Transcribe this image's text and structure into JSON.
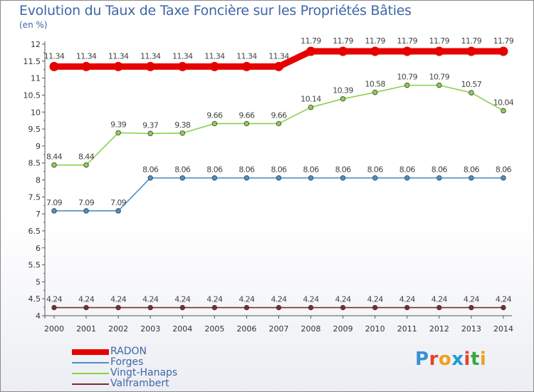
{
  "title": "Evolution du Taux de Taxe Foncière sur les Propriétés Bâties",
  "unit": "(en %)",
  "logo": "Proxiti",
  "colors": {
    "title": "#3f66a8",
    "axis": "#555555",
    "tick_text": "#333333",
    "label_text": "#444444",
    "minor_tick": "#e03030"
  },
  "chart_data": {
    "type": "line",
    "title": "Evolution du Taux de Taxe Foncière sur les Propriétés Bâties",
    "ylabel": "(en %)",
    "x": [
      "2000",
      "2001",
      "2002",
      "2003",
      "2004",
      "2005",
      "2006",
      "2007",
      "2008",
      "2009",
      "2010",
      "2011",
      "2012",
      "2013",
      "2014"
    ],
    "ylim": [
      4,
      12
    ],
    "yticks": [
      "4",
      "4.5",
      "5",
      "5.5",
      "6",
      "6.5",
      "7",
      "7.5",
      "8",
      "8.5",
      "9",
      "9.5",
      "10",
      "10.5",
      "11",
      "11.5",
      "12"
    ],
    "grid": false,
    "legend_position": "bottom-left",
    "series": [
      {
        "name": "RADON",
        "color": "#e60000",
        "values": [
          11.34,
          11.34,
          11.34,
          11.34,
          11.34,
          11.34,
          11.34,
          11.34,
          11.79,
          11.79,
          11.79,
          11.79,
          11.79,
          11.79,
          11.79
        ],
        "labels": [
          "11.34",
          "11.34",
          "11.34",
          "11.34",
          "11.34",
          "11.34",
          "11.34",
          "11.34",
          "11.79",
          "11.79",
          "11.79",
          "11.79",
          "11.79",
          "11.79",
          "11.79"
        ]
      },
      {
        "name": "Forges",
        "color": "#4a90c8",
        "values": [
          7.09,
          7.09,
          7.09,
          8.06,
          8.06,
          8.06,
          8.06,
          8.06,
          8.06,
          8.06,
          8.06,
          8.06,
          8.06,
          8.06,
          8.06
        ],
        "labels": [
          "7.09",
          "7.09",
          "7.09",
          "8.06",
          "8.06",
          "8.06",
          "8.06",
          "8.06",
          "8.06",
          "8.06",
          "8.06",
          "8.06",
          "8.06",
          "8.06",
          "8.06"
        ]
      },
      {
        "name": "Vingt-Hanaps",
        "color": "#8ccf4d",
        "values": [
          8.44,
          8.44,
          9.39,
          9.37,
          9.38,
          9.66,
          9.66,
          9.66,
          10.14,
          10.39,
          10.58,
          10.79,
          10.79,
          10.57,
          10.04
        ],
        "labels": [
          "8.44",
          "8.44",
          "9.39",
          "9.37",
          "9.38",
          "9.66",
          "9.66",
          "9.66",
          "10.14",
          "10.39",
          "10.58",
          "10.79",
          "10.79",
          "10.57",
          "10.04"
        ]
      },
      {
        "name": "Valframbert",
        "color": "#7a2d2d",
        "values": [
          4.24,
          4.24,
          4.24,
          4.24,
          4.24,
          4.24,
          4.24,
          4.24,
          4.24,
          4.24,
          4.24,
          4.24,
          4.24,
          4.24,
          4.24
        ],
        "labels": [
          "4.24",
          "4.24",
          "4.24",
          "4.24",
          "4.24",
          "4.24",
          "4.24",
          "4.24",
          "4.24",
          "4.24",
          "4.24",
          "4.24",
          "4.24",
          "4.24",
          "4.24"
        ]
      }
    ]
  }
}
